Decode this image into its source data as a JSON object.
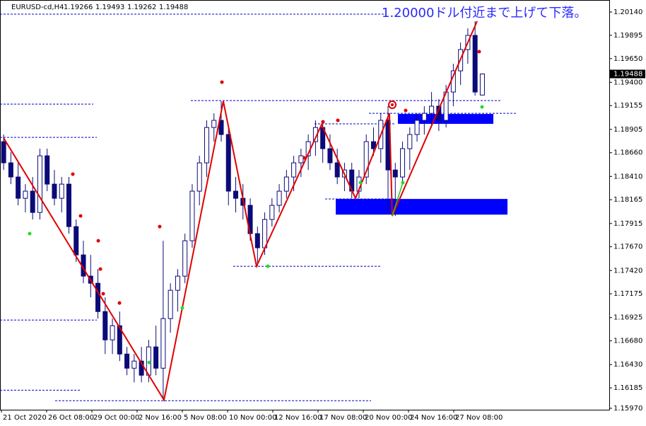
{
  "chart_data": {
    "type": "candlestick",
    "symbol": "EURUSD-cd,H4",
    "annotation": "1.20000ドル付近まで上げて下落。",
    "bull_color": "#ffffff",
    "bear_color": "#0a0a78",
    "xlim": [
      -0.5,
      83.5
    ],
    "ylim": [
      1.15955,
      1.20244
    ],
    "xticks": [
      {
        "value": -0.3,
        "label": "21 Oct 2020"
      },
      {
        "value": 5.93,
        "label": "26 Oct 08:00"
      },
      {
        "value": 12.17,
        "label": "29 Oct 00:00"
      },
      {
        "value": 18.4,
        "label": "2 Nov 16:00"
      },
      {
        "value": 24.64,
        "label": "5 Nov 08:00"
      },
      {
        "value": 30.88,
        "label": "10 Nov 00:00"
      },
      {
        "value": 37.11,
        "label": "12 Nov 16:00"
      },
      {
        "value": 43.35,
        "label": "17 Nov 08:00"
      },
      {
        "value": 49.59,
        "label": "20 Nov 00:00"
      },
      {
        "value": 55.82,
        "label": "24 Nov 16:00"
      },
      {
        "value": 62.06,
        "label": "27 Nov 08:00"
      }
    ],
    "yticks": [
      {
        "value": 1.2014,
        "label": "1.20140"
      },
      1.19895,
      {
        "value": 1.1965,
        "label": "1.19650"
      },
      {
        "value": 1.194,
        "label": "1.19400"
      },
      {
        "value": 1.19155,
        "label": "1.19155"
      },
      1.18905,
      {
        "value": 1.1866,
        "label": "1.18660"
      },
      {
        "value": 1.1841,
        "label": "1.18410"
      },
      1.18165,
      1.17915,
      {
        "value": 1.1767,
        "label": "1.17670"
      },
      {
        "value": 1.1742,
        "label": "1.17420"
      },
      1.17175,
      1.16925,
      {
        "value": 1.1668,
        "label": "1.16680"
      },
      {
        "value": 1.1643,
        "label": "1.16430"
      },
      1.16185,
      {
        "value": 1.1597,
        "label": "1.15970"
      }
    ],
    "candles": [
      [
        1.18776,
        1.18851,
        1.18478,
        1.18553
      ],
      [
        1.18553,
        1.18665,
        1.18329,
        1.18404
      ],
      [
        1.18404,
        1.18553,
        1.18106,
        1.1818
      ],
      [
        1.1818,
        1.18329,
        1.18031,
        1.18255
      ],
      [
        1.18255,
        1.18404,
        1.17957,
        1.18031
      ],
      [
        1.18031,
        1.18702,
        1.17957,
        1.18627
      ],
      [
        1.18627,
        1.18702,
        1.18255,
        1.18329
      ],
      [
        1.18329,
        1.18478,
        1.18106,
        1.1818
      ],
      [
        1.1818,
        1.18404,
        1.18031,
        1.18329
      ],
      [
        1.18329,
        1.18404,
        1.17808,
        1.17882
      ],
      [
        1.17882,
        1.17957,
        1.1751,
        1.17584
      ],
      [
        1.17584,
        1.17733,
        1.17286,
        1.17361
      ],
      [
        1.17361,
        1.17584,
        1.17137,
        1.17286
      ],
      [
        1.17286,
        1.17435,
        1.16914,
        1.16988
      ],
      [
        1.16988,
        1.17137,
        1.16541,
        1.1669
      ],
      [
        1.1669,
        1.16914,
        1.16541,
        1.16839
      ],
      [
        1.16839,
        1.16988,
        1.16467,
        1.16541
      ],
      [
        1.16541,
        1.16616,
        1.16318,
        1.16392
      ],
      [
        1.16392,
        1.16541,
        1.16243,
        1.16467
      ],
      [
        1.16467,
        1.16616,
        1.16243,
        1.16318
      ],
      [
        1.16318,
        1.1669,
        1.16243,
        1.16616
      ],
      [
        1.16616,
        1.16839,
        1.16318,
        1.16392
      ],
      [
        1.16392,
        1.17733,
        1.16057,
        1.16914
      ],
      [
        1.16914,
        1.17286,
        1.16765,
        1.17212
      ],
      [
        1.17212,
        1.17435,
        1.16988,
        1.17361
      ],
      [
        1.17361,
        1.17808,
        1.17286,
        1.17733
      ],
      [
        1.17733,
        1.18329,
        1.17659,
        1.18255
      ],
      [
        1.18255,
        1.18627,
        1.18106,
        1.18553
      ],
      [
        1.18553,
        1.19,
        1.18404,
        1.18925
      ],
      [
        1.18925,
        1.19074,
        1.18776,
        1.19
      ],
      [
        1.19,
        1.19201,
        1.18776,
        1.18851
      ],
      [
        1.18851,
        1.18925,
        1.18106,
        1.18255
      ],
      [
        1.18255,
        1.18404,
        1.18031,
        1.1818
      ],
      [
        1.1818,
        1.18329,
        1.17957,
        1.18106
      ],
      [
        1.18106,
        1.1818,
        1.17733,
        1.17808
      ],
      [
        1.17808,
        1.17882,
        1.17465,
        1.17659
      ],
      [
        1.17659,
        1.18031,
        1.17584,
        1.17957
      ],
      [
        1.17957,
        1.1818,
        1.17882,
        1.18106
      ],
      [
        1.18106,
        1.18329,
        1.18031,
        1.18255
      ],
      [
        1.18255,
        1.18478,
        1.1818,
        1.18404
      ],
      [
        1.18404,
        1.18627,
        1.18255,
        1.18553
      ],
      [
        1.18553,
        1.18702,
        1.18404,
        1.18627
      ],
      [
        1.18627,
        1.18851,
        1.18478,
        1.18776
      ],
      [
        1.18776,
        1.19,
        1.18627,
        1.18925
      ],
      [
        1.18925,
        1.18955,
        1.18553,
        1.18702
      ],
      [
        1.18702,
        1.18851,
        1.18478,
        1.18553
      ],
      [
        1.18553,
        1.18702,
        1.18329,
        1.18404
      ],
      [
        1.18404,
        1.18553,
        1.18255,
        1.18478
      ],
      [
        1.18478,
        1.18553,
        1.1818,
        1.18255
      ],
      [
        1.18255,
        1.18478,
        1.1818,
        1.18404
      ],
      [
        1.18404,
        1.18851,
        1.18329,
        1.18776
      ],
      [
        1.18776,
        1.18925,
        1.18627,
        1.18702
      ],
      [
        1.18702,
        1.19074,
        1.18553,
        1.19
      ],
      [
        1.19,
        1.19149,
        1.18031,
        1.18478
      ],
      [
        1.18478,
        1.18553,
        1.17994,
        1.18404
      ],
      [
        1.18404,
        1.18776,
        1.18329,
        1.18702
      ],
      [
        1.18702,
        1.18925,
        1.18478,
        1.18851
      ],
      [
        1.18851,
        1.19074,
        1.18776,
        1.19
      ],
      [
        1.19,
        1.19149,
        1.18851,
        1.19074
      ],
      [
        1.19074,
        1.19298,
        1.18925,
        1.19149
      ],
      [
        1.19149,
        1.19223,
        1.18888,
        1.19
      ],
      [
        1.19,
        1.19372,
        1.18925,
        1.19298
      ],
      [
        1.19298,
        1.19596,
        1.19149,
        1.19521
      ],
      [
        1.19521,
        1.19819,
        1.19372,
        1.19745
      ],
      [
        1.19745,
        1.19968,
        1.19596,
        1.19894
      ],
      [
        1.19894,
        1.20043,
        1.19261,
        1.19298
      ],
      [
        1.19266,
        1.19493,
        1.19262,
        1.19488
      ]
    ],
    "zigzag": {
      "color": "#e00000",
      "x": [
        0.0,
        22.11,
        30.29,
        34.87,
        43.84,
        48.52,
        53.19,
        53.58,
        65.28
      ],
      "values": [
        1.18814,
        1.16057,
        1.19201,
        1.17465,
        1.18955,
        1.1818,
        1.19074,
        1.17994,
        1.20043
      ]
    },
    "zigzag_extension": {
      "color": "#22cc22",
      "x": [
        53.58,
        55.04
      ],
      "values": [
        1.17994,
        1.18344
      ]
    },
    "fractals_up": {
      "color": "#e00000",
      "x": [
        9.54,
        10.61,
        13.05,
        13.34,
        13.73,
        15.97,
        21.52,
        30.1,
        44.03,
        46.08,
        41.5,
        55.43,
        65.57
      ],
      "values": [
        1.18434,
        1.17994,
        1.17733,
        1.17435,
        1.17175,
        1.17078,
        1.17882,
        1.19402,
        1.18985,
        1.19,
        1.18605,
        1.19104,
        1.19723
      ]
    },
    "fractals_down": {
      "color": "#22dd22",
      "x": [
        3.59,
        20.06,
        24.64,
        36.43,
        49.2,
        55.04,
        65.96
      ],
      "values": [
        1.17808,
        1.16452,
        1.17026,
        1.17465,
        1.18344,
        1.18344,
        1.19141
      ]
    },
    "zone_color": "#0000ff",
    "zones": [
      {
        "x": [
          54.36,
          67.52
        ],
        "y": [
          1.19067,
          1.18963
        ]
      },
      {
        "x": [
          45.79,
          69.47
        ],
        "y": [
          1.18173,
          1.18008
        ]
      }
    ],
    "level_color": "#0000cc",
    "levels": [
      {
        "y": 1.20117,
        "x": [
          -0.5,
          52.61
        ]
      },
      {
        "y": 1.19171,
        "x": [
          -0.5,
          12.36
        ]
      },
      {
        "y": 1.18821,
        "x": [
          -0.5,
          12.85
        ]
      },
      {
        "y": 1.16899,
        "x": [
          -0.5,
          12.85
        ]
      },
      {
        "y": 1.16161,
        "x": [
          -0.5,
          10.51
        ]
      },
      {
        "y": 1.1605,
        "x": [
          7.1,
          50.66
        ]
      },
      {
        "y": 1.19208,
        "x": [
          25.81,
          68.69
        ]
      },
      {
        "y": 1.17465,
        "x": [
          31.66,
          51.93
        ]
      },
      {
        "y": 1.18963,
        "x": [
          42.86,
          54.07
        ]
      },
      {
        "y": 1.19074,
        "x": [
          50.37,
          70.64
        ]
      },
      {
        "y": 1.18173,
        "x": [
          44.33,
          54.07
        ]
      }
    ]
  }
}
